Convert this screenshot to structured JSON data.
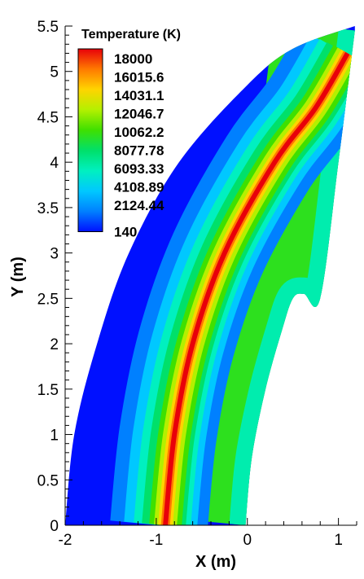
{
  "chart_data": {
    "type": "heatmap",
    "title": "",
    "xlabel": "X (m)",
    "ylabel": "Y (m)",
    "xlim": [
      -2,
      1.2
    ],
    "ylim": [
      0,
      5.5
    ],
    "x_ticks": [
      -2,
      -1,
      0,
      1
    ],
    "x_tick_labels": [
      "-2",
      "-1",
      "0",
      "1"
    ],
    "y_ticks": [
      0,
      0.5,
      1,
      1.5,
      2,
      2.5,
      3,
      3.5,
      4,
      4.5,
      5,
      5.5
    ],
    "y_tick_labels": [
      "0",
      "0.5",
      "1",
      "1.5",
      "2",
      "2.5",
      "3",
      "3.5",
      "4",
      "4.5",
      "5",
      "5.5"
    ],
    "grid": false,
    "legend": {
      "title": "Temperature",
      "unit": "(K)",
      "placement": "top-left",
      "levels": [
        18000,
        16015.6,
        14031.1,
        12046.7,
        10062.2,
        8077.78,
        6093.33,
        4108.89,
        2124.44,
        140
      ],
      "labels": [
        "18000",
        "16015.6",
        "14031.1",
        "12046.7",
        "10062.2",
        "8077.78",
        "6093.33",
        "4108.89",
        "2124.44",
        "140"
      ],
      "colors": [
        "#e8000a",
        "#ff7a00",
        "#ffd400",
        "#b4f000",
        "#3fe000",
        "#00e06a",
        "#00f0c0",
        "#00c8ff",
        "#0080ff",
        "#0010ff"
      ]
    },
    "field": {
      "body_outline": [
        [
          -0.02,
          0
        ],
        [
          0.05,
          0.75
        ],
        [
          0.2,
          1.5
        ],
        [
          0.38,
          2.15
        ],
        [
          0.5,
          2.5
        ],
        [
          0.62,
          2.55
        ],
        [
          0.8,
          2.5
        ],
        [
          1.0,
          4.0
        ],
        [
          1.18,
          5.45
        ]
      ],
      "shock_outline": [
        [
          -2,
          0
        ],
        [
          -1.9,
          1.0
        ],
        [
          -1.65,
          2.0
        ],
        [
          -1.3,
          3.0
        ],
        [
          -0.75,
          4.0
        ],
        [
          0.0,
          4.85
        ],
        [
          0.5,
          5.25
        ],
        [
          1.18,
          5.5
        ]
      ],
      "peak_line": [
        [
          -0.9,
          0
        ],
        [
          -0.8,
          1.0
        ],
        [
          -0.6,
          2.0
        ],
        [
          -0.25,
          3.0
        ],
        [
          0.3,
          4.0
        ],
        [
          0.75,
          4.6
        ],
        [
          1.1,
          5.2
        ]
      ],
      "freestream_temperature_k": 140,
      "peak_temperature_k": 18000,
      "post_shock_temperature_k": 9500,
      "near_wall_temperature_k": 6500
    }
  }
}
